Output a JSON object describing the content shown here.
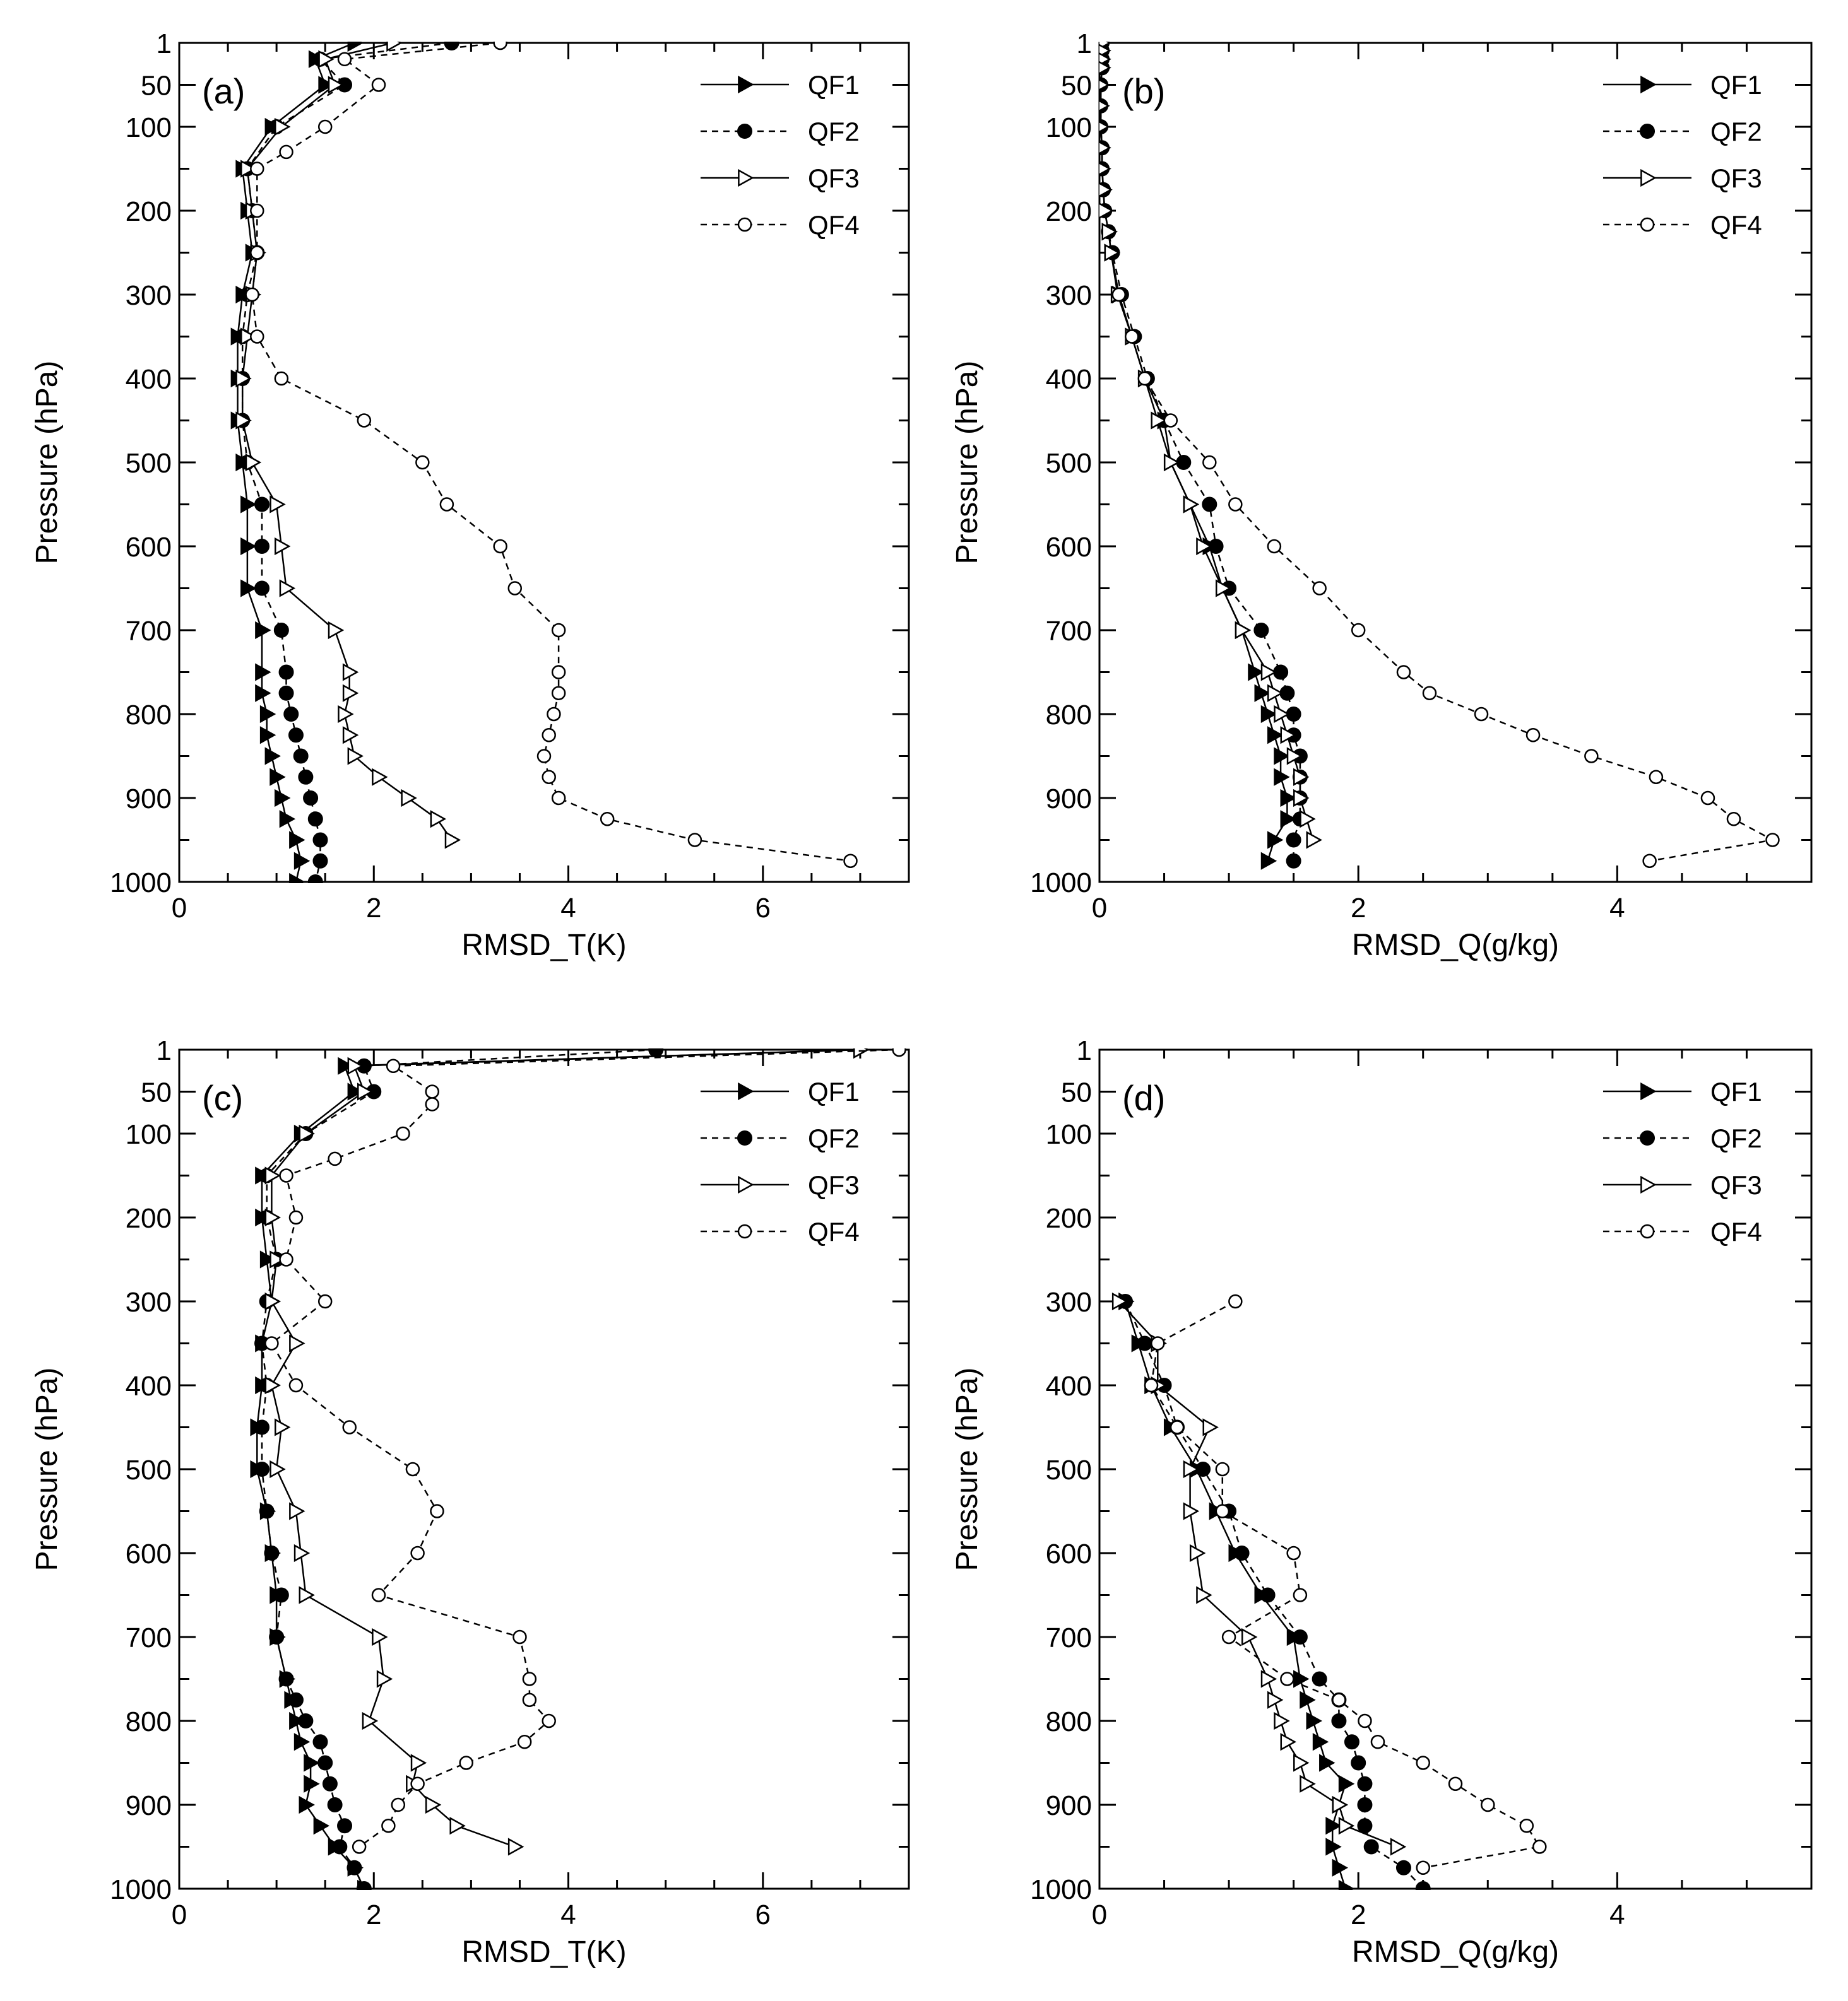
{
  "figure": {
    "panels": [
      {
        "label": "(a)",
        "xlabel": "RMSD_T(K)",
        "ylabel": "Pressure (hPa)",
        "xlim": [
          0,
          7.5
        ],
        "xticks": [
          "0",
          "2",
          "4",
          "6"
        ]
      },
      {
        "label": "(b)",
        "xlabel": "RMSD_Q(g/kg)",
        "ylabel": "Pressure (hPa)",
        "xlim": [
          0,
          5.5
        ],
        "xticks": [
          "0",
          "2",
          "4"
        ]
      },
      {
        "label": "(c)",
        "xlabel": "RMSD_T(K)",
        "ylabel": "Pressure (hPa)",
        "xlim": [
          0,
          7.5
        ],
        "xticks": [
          "0",
          "2",
          "4",
          "6"
        ]
      },
      {
        "label": "(d)",
        "xlabel": "RMSD_Q(g/kg)",
        "ylabel": "Pressure (hPa)",
        "xlim": [
          0,
          5.5
        ],
        "xticks": [
          "0",
          "2",
          "4"
        ]
      }
    ],
    "yticks": [
      "1",
      "50",
      "100",
      "200",
      "300",
      "400",
      "500",
      "600",
      "700",
      "800",
      "900",
      "1000"
    ],
    "legend": [
      "QF1",
      "QF2",
      "QF3",
      "QF4"
    ]
  },
  "chart_data": [
    {
      "type": "line",
      "title": "(a)",
      "xlabel": "RMSD_T(K)",
      "ylabel": "Pressure (hPa)",
      "xlim": [
        0,
        7.5
      ],
      "ylim": [
        1000,
        1
      ],
      "pressure_levels": [
        1,
        50,
        100,
        150,
        200,
        250,
        300,
        350,
        400,
        450,
        500,
        550,
        600,
        650,
        700,
        750,
        800,
        850,
        900,
        950,
        1000
      ],
      "legend_position": "top-right",
      "series": [
        {
          "name": "QF1",
          "pressure": [
            1,
            20,
            50,
            100,
            150,
            200,
            250,
            300,
            350,
            400,
            450,
            500,
            550,
            600,
            650,
            700,
            750,
            775,
            800,
            825,
            850,
            875,
            900,
            925,
            950,
            975,
            1000
          ],
          "values": [
            1.8,
            1.4,
            1.5,
            0.95,
            0.65,
            0.7,
            0.75,
            0.65,
            0.6,
            0.6,
            0.6,
            0.65,
            0.7,
            0.7,
            0.7,
            0.85,
            0.85,
            0.85,
            0.9,
            0.9,
            0.95,
            1.0,
            1.05,
            1.1,
            1.2,
            1.25,
            1.2
          ]
        },
        {
          "name": "QF2",
          "pressure": [
            1,
            20,
            50,
            100,
            150,
            200,
            250,
            300,
            350,
            400,
            450,
            500,
            550,
            600,
            650,
            700,
            750,
            775,
            800,
            825,
            850,
            875,
            900,
            925,
            950,
            975,
            1000
          ],
          "values": [
            2.8,
            1.45,
            1.7,
            1.0,
            0.7,
            0.75,
            0.8,
            0.7,
            0.65,
            0.65,
            0.65,
            0.7,
            0.85,
            0.85,
            0.85,
            1.05,
            1.1,
            1.1,
            1.15,
            1.2,
            1.25,
            1.3,
            1.35,
            1.4,
            1.45,
            1.45,
            1.4
          ]
        },
        {
          "name": "QF3",
          "pressure": [
            1,
            20,
            50,
            100,
            150,
            200,
            250,
            300,
            350,
            400,
            450,
            500,
            550,
            600,
            650,
            700,
            750,
            775,
            800,
            825,
            850,
            875,
            900,
            925,
            950
          ],
          "values": [
            2.2,
            1.5,
            1.6,
            1.05,
            0.7,
            0.75,
            0.8,
            0.75,
            0.7,
            0.65,
            0.65,
            0.75,
            1.0,
            1.05,
            1.1,
            1.6,
            1.75,
            1.75,
            1.7,
            1.75,
            1.8,
            2.05,
            2.35,
            2.65,
            2.8
          ]
        },
        {
          "name": "QF4",
          "pressure": [
            1,
            20,
            50,
            100,
            130,
            150,
            200,
            250,
            300,
            350,
            400,
            450,
            500,
            550,
            600,
            650,
            700,
            750,
            775,
            800,
            825,
            850,
            875,
            900,
            925,
            950,
            975
          ],
          "values": [
            3.3,
            1.7,
            2.05,
            1.5,
            1.1,
            0.8,
            0.8,
            0.8,
            0.75,
            0.8,
            1.05,
            1.9,
            2.5,
            2.75,
            3.3,
            3.45,
            3.9,
            3.9,
            3.9,
            3.85,
            3.8,
            3.75,
            3.8,
            3.9,
            4.4,
            5.3,
            6.9
          ]
        }
      ]
    },
    {
      "type": "line",
      "title": "(b)",
      "xlabel": "RMSD_Q(g/kg)",
      "ylabel": "Pressure (hPa)",
      "xlim": [
        0,
        5.5
      ],
      "ylim": [
        1000,
        1
      ],
      "legend_position": "top-right",
      "series": [
        {
          "name": "QF1",
          "pressure": [
            1,
            10,
            20,
            30,
            50,
            75,
            100,
            125,
            150,
            175,
            200,
            225,
            250,
            300,
            350,
            400,
            450,
            500,
            550,
            600,
            650,
            700,
            750,
            775,
            800,
            825,
            850,
            875,
            900,
            925,
            950,
            975
          ],
          "values": [
            0.02,
            0.02,
            0.02,
            0.02,
            0.01,
            0.01,
            0.01,
            0.02,
            0.02,
            0.03,
            0.04,
            0.07,
            0.09,
            0.15,
            0.25,
            0.35,
            0.5,
            0.55,
            0.7,
            0.85,
            0.95,
            1.1,
            1.2,
            1.25,
            1.3,
            1.35,
            1.4,
            1.4,
            1.45,
            1.45,
            1.35,
            1.3
          ]
        },
        {
          "name": "QF2",
          "pressure": [
            1,
            10,
            20,
            30,
            50,
            75,
            100,
            125,
            150,
            175,
            200,
            225,
            250,
            300,
            350,
            400,
            450,
            500,
            550,
            600,
            650,
            700,
            750,
            775,
            800,
            825,
            850,
            875,
            900,
            925,
            950,
            975
          ],
          "values": [
            0.02,
            0.02,
            0.02,
            0.02,
            0.01,
            0.01,
            0.01,
            0.02,
            0.02,
            0.03,
            0.04,
            0.07,
            0.1,
            0.17,
            0.27,
            0.37,
            0.5,
            0.65,
            0.85,
            0.9,
            1.0,
            1.25,
            1.4,
            1.45,
            1.5,
            1.5,
            1.55,
            1.55,
            1.55,
            1.55,
            1.5,
            1.5
          ]
        },
        {
          "name": "QF3",
          "pressure": [
            1,
            10,
            20,
            30,
            50,
            75,
            100,
            125,
            150,
            175,
            200,
            225,
            250,
            300,
            350,
            400,
            450,
            500,
            550,
            600,
            650,
            700,
            750,
            775,
            800,
            825,
            850,
            875,
            900,
            925,
            950
          ],
          "values": [
            0.02,
            0.02,
            0.02,
            0.02,
            0.01,
            0.01,
            0.01,
            0.02,
            0.02,
            0.03,
            0.04,
            0.07,
            0.09,
            0.14,
            0.25,
            0.35,
            0.45,
            0.55,
            0.7,
            0.8,
            0.95,
            1.1,
            1.3,
            1.35,
            1.4,
            1.45,
            1.5,
            1.55,
            1.55,
            1.6,
            1.65
          ]
        },
        {
          "name": "QF4",
          "pressure": [
            300,
            350,
            400,
            450,
            500,
            550,
            600,
            650,
            700,
            750,
            775,
            800,
            825,
            850,
            875,
            900,
            925,
            950,
            975
          ],
          "values": [
            0.15,
            0.25,
            0.35,
            0.55,
            0.85,
            1.05,
            1.35,
            1.7,
            2.0,
            2.35,
            2.55,
            2.95,
            3.35,
            3.8,
            4.3,
            4.7,
            4.9,
            5.2,
            4.25
          ]
        }
      ]
    },
    {
      "type": "line",
      "title": "(c)",
      "xlabel": "RMSD_T(K)",
      "ylabel": "Pressure (hPa)",
      "xlim": [
        0,
        7.5
      ],
      "ylim": [
        1000,
        1
      ],
      "legend_position": "top-right",
      "series": [
        {
          "name": "QF1",
          "pressure": [
            1,
            20,
            50,
            100,
            150,
            200,
            250,
            300,
            350,
            400,
            450,
            500,
            550,
            600,
            650,
            700,
            750,
            775,
            800,
            825,
            850,
            875,
            900,
            925,
            950,
            975,
            1000
          ],
          "values": [
            7.0,
            1.7,
            1.8,
            1.25,
            0.85,
            0.85,
            0.9,
            0.95,
            0.85,
            0.85,
            0.8,
            0.8,
            0.9,
            0.95,
            1.0,
            1.0,
            1.1,
            1.15,
            1.2,
            1.25,
            1.35,
            1.35,
            1.3,
            1.45,
            1.6,
            1.8,
            1.9
          ]
        },
        {
          "name": "QF2",
          "pressure": [
            1,
            20,
            50,
            100,
            150,
            200,
            250,
            300,
            350,
            400,
            450,
            500,
            550,
            600,
            650,
            700,
            750,
            775,
            800,
            825,
            850,
            875,
            900,
            925,
            950,
            975,
            1000
          ],
          "values": [
            4.9,
            1.9,
            2.0,
            1.3,
            0.9,
            0.9,
            1.0,
            0.9,
            0.85,
            0.9,
            0.85,
            0.85,
            0.9,
            0.95,
            1.05,
            1.0,
            1.1,
            1.2,
            1.3,
            1.45,
            1.5,
            1.55,
            1.6,
            1.7,
            1.65,
            1.8,
            1.9
          ]
        },
        {
          "name": "QF3",
          "pressure": [
            1,
            20,
            50,
            100,
            150,
            200,
            250,
            300,
            350,
            400,
            450,
            500,
            550,
            600,
            650,
            700,
            750,
            800,
            850,
            875,
            900,
            925,
            950
          ],
          "values": [
            7.0,
            1.8,
            1.9,
            1.3,
            0.95,
            0.95,
            1.0,
            0.95,
            1.2,
            0.95,
            1.05,
            1.0,
            1.2,
            1.25,
            1.3,
            2.05,
            2.1,
            1.95,
            2.45,
            2.4,
            2.6,
            2.85,
            3.45
          ]
        },
        {
          "name": "QF4",
          "pressure": [
            1,
            20,
            50,
            65,
            100,
            130,
            150,
            200,
            250,
            300,
            350,
            400,
            450,
            500,
            550,
            600,
            650,
            700,
            750,
            775,
            800,
            825,
            850,
            875,
            900,
            925,
            950
          ],
          "values": [
            7.4,
            2.2,
            2.6,
            2.6,
            2.3,
            1.6,
            1.1,
            1.2,
            1.1,
            1.5,
            0.95,
            1.2,
            1.75,
            2.4,
            2.65,
            2.45,
            2.05,
            3.5,
            3.6,
            3.6,
            3.8,
            3.55,
            2.95,
            2.45,
            2.25,
            2.15,
            1.85
          ]
        }
      ]
    },
    {
      "type": "line",
      "title": "(d)",
      "xlabel": "RMSD_Q(g/kg)",
      "ylabel": "Pressure (hPa)",
      "xlim": [
        0,
        5.5
      ],
      "ylim": [
        1000,
        1
      ],
      "legend_position": "top-right",
      "series": [
        {
          "name": "QF1",
          "pressure": [
            300,
            350,
            400,
            450,
            500,
            550,
            600,
            650,
            700,
            750,
            775,
            800,
            825,
            850,
            875,
            900,
            925,
            950,
            975,
            1000
          ],
          "values": [
            0.2,
            0.3,
            0.4,
            0.55,
            0.75,
            0.9,
            1.05,
            1.25,
            1.5,
            1.55,
            1.6,
            1.65,
            1.7,
            1.75,
            1.9,
            1.85,
            1.8,
            1.8,
            1.85,
            1.9
          ]
        },
        {
          "name": "QF2",
          "pressure": [
            300,
            350,
            400,
            450,
            500,
            550,
            600,
            650,
            700,
            750,
            775,
            800,
            825,
            850,
            875,
            900,
            925,
            950,
            975,
            1000
          ],
          "values": [
            0.2,
            0.35,
            0.5,
            0.6,
            0.8,
            1.0,
            1.1,
            1.3,
            1.55,
            1.7,
            1.85,
            1.85,
            1.95,
            2.0,
            2.05,
            2.05,
            2.05,
            2.1,
            2.35,
            2.5
          ]
        },
        {
          "name": "QF3",
          "pressure": [
            300,
            350,
            400,
            450,
            500,
            550,
            600,
            650,
            700,
            750,
            775,
            800,
            825,
            850,
            875,
            900,
            925,
            950
          ],
          "values": [
            0.15,
            0.45,
            0.45,
            0.85,
            0.7,
            0.7,
            0.75,
            0.8,
            1.15,
            1.3,
            1.35,
            1.4,
            1.45,
            1.55,
            1.6,
            1.85,
            1.9,
            2.3
          ]
        },
        {
          "name": "QF4",
          "pressure": [
            300,
            350,
            400,
            450,
            500,
            550,
            600,
            650,
            700,
            750,
            775,
            800,
            825,
            850,
            875,
            900,
            925,
            950,
            975
          ],
          "values": [
            1.05,
            0.45,
            0.4,
            0.6,
            0.95,
            0.95,
            1.5,
            1.55,
            1.0,
            1.45,
            1.85,
            2.05,
            2.15,
            2.5,
            2.75,
            3.0,
            3.3,
            3.4,
            2.5
          ]
        }
      ]
    }
  ]
}
